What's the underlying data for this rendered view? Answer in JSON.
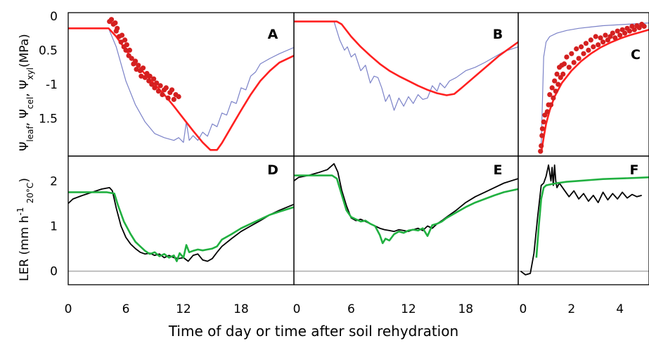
{
  "figure": {
    "xlabel": "Time of day or time after soil rehydration",
    "ylabel_top": "Ψleaf, Ψcel, Ψxyl(MPa)",
    "ylabel_bottom": "LER (mm h-1 20°C)",
    "colors": {
      "xylem": "#7b82c8",
      "leaf": "#ff2020",
      "points": "#d42020",
      "ler_measured": "#000000",
      "ler_model": "#20b040"
    }
  },
  "chart_data": [
    {
      "id": "A",
      "label": "A",
      "type": "line",
      "xlim": [
        0,
        23.5
      ],
      "ylim": [
        -2.05,
        0.05
      ],
      "xticks": [
        0,
        6,
        12,
        18
      ],
      "yticks": [
        0,
        -0.5,
        -1,
        -1.5
      ],
      "ytick_labels": [
        "0",
        "0.5",
        "-1",
        "1.5"
      ],
      "series": [
        {
          "color": "#7b82c8",
          "x": [
            0,
            4.2,
            5,
            6,
            7,
            8,
            9,
            10,
            11,
            11.5,
            12,
            12.3,
            12.6,
            13,
            13.5,
            14,
            14.5,
            15,
            15.5,
            16,
            16.5,
            17,
            17.5,
            18,
            18.5,
            19,
            19.5,
            20,
            21,
            22,
            23.5
          ],
          "y": [
            -0.18,
            -0.18,
            -0.45,
            -0.95,
            -1.3,
            -1.55,
            -1.72,
            -1.78,
            -1.82,
            -1.78,
            -1.85,
            -1.55,
            -1.82,
            -1.75,
            -1.82,
            -1.7,
            -1.76,
            -1.58,
            -1.62,
            -1.42,
            -1.45,
            -1.25,
            -1.28,
            -1.05,
            -1.08,
            -0.88,
            -0.82,
            -0.7,
            -0.62,
            -0.55,
            -0.46
          ]
        },
        {
          "color": "#ff2020",
          "x": [
            0,
            4.2,
            5,
            6,
            7,
            8,
            9,
            10,
            11,
            12,
            13,
            14,
            14.8,
            15.5,
            16,
            17,
            18,
            19,
            20,
            21,
            22,
            23.5
          ],
          "y": [
            -0.18,
            -0.18,
            -0.3,
            -0.5,
            -0.68,
            -0.85,
            -1.0,
            -1.15,
            -1.32,
            -1.5,
            -1.68,
            -1.85,
            -1.96,
            -1.96,
            -1.86,
            -1.62,
            -1.38,
            -1.15,
            -0.95,
            -0.8,
            -0.68,
            -0.58
          ]
        }
      ],
      "points": {
        "color": "#d42020",
        "x": [
          4.3,
          4.5,
          4.7,
          4.9,
          5.0,
          5.1,
          5.3,
          5.5,
          5.6,
          5.8,
          5.9,
          6.0,
          6.1,
          6.3,
          6.4,
          6.6,
          6.8,
          7.0,
          7.1,
          7.3,
          7.5,
          7.6,
          7.8,
          8.0,
          8.2,
          8.4,
          8.5,
          8.7,
          8.9,
          9.0,
          9.2,
          9.4,
          9.6,
          9.8,
          10.0,
          10.2,
          10.4,
          10.6,
          10.8,
          11.0,
          11.2,
          11.5
        ],
        "y": [
          -0.08,
          -0.05,
          -0.12,
          -0.1,
          -0.22,
          -0.18,
          -0.3,
          -0.38,
          -0.28,
          -0.45,
          -0.35,
          -0.5,
          -0.42,
          -0.58,
          -0.5,
          -0.62,
          -0.7,
          -0.66,
          -0.78,
          -0.72,
          -0.8,
          -0.88,
          -0.76,
          -0.9,
          -0.84,
          -0.95,
          -0.88,
          -1.0,
          -0.92,
          -1.05,
          -0.98,
          -1.1,
          -1.02,
          -1.15,
          -1.08,
          -1.05,
          -1.2,
          -1.12,
          -1.08,
          -1.22,
          -1.15,
          -1.18
        ]
      }
    },
    {
      "id": "B",
      "label": "B",
      "type": "line",
      "xlim": [
        0,
        23.5
      ],
      "ylim": [
        -2.05,
        0.05
      ],
      "xticks": [
        0,
        6,
        12,
        18
      ],
      "yticks": [],
      "series": [
        {
          "color": "#7b82c8",
          "x": [
            0,
            4.2,
            4.8,
            5.3,
            5.6,
            6,
            6.4,
            7,
            7.5,
            8,
            8.4,
            8.8,
            9.2,
            9.6,
            10,
            10.5,
            11,
            11.5,
            12,
            12.5,
            13,
            13.5,
            14,
            14.5,
            15,
            15.3,
            15.8,
            16.3,
            17,
            18,
            19,
            20,
            21,
            22,
            23.5
          ],
          "y": [
            -0.08,
            -0.08,
            -0.35,
            -0.5,
            -0.45,
            -0.6,
            -0.55,
            -0.8,
            -0.72,
            -0.98,
            -0.88,
            -0.9,
            -1.05,
            -1.25,
            -1.15,
            -1.38,
            -1.2,
            -1.32,
            -1.18,
            -1.28,
            -1.15,
            -1.22,
            -1.2,
            -1.02,
            -1.1,
            -0.98,
            -1.05,
            -0.95,
            -0.9,
            -0.8,
            -0.75,
            -0.68,
            -0.6,
            -0.52,
            -0.45
          ]
        },
        {
          "color": "#ff2020",
          "x": [
            0,
            4.5,
            5,
            6,
            7,
            8,
            9,
            10,
            11,
            12,
            13,
            14,
            15,
            16,
            16.8,
            17.5,
            18.5,
            19.5,
            20.5,
            21.5,
            22.5,
            23.5
          ],
          "y": [
            -0.08,
            -0.08,
            -0.12,
            -0.3,
            -0.45,
            -0.58,
            -0.7,
            -0.8,
            -0.88,
            -0.95,
            -1.02,
            -1.08,
            -1.13,
            -1.16,
            -1.14,
            -1.06,
            -0.94,
            -0.82,
            -0.7,
            -0.58,
            -0.48,
            -0.38
          ]
        }
      ]
    },
    {
      "id": "C",
      "label": "C",
      "type": "line",
      "xlim": [
        -0.2,
        5.2
      ],
      "ylim": [
        -2.05,
        0.05
      ],
      "xticks": [
        0,
        2,
        4
      ],
      "yticks": [],
      "series": [
        {
          "color": "#7b82c8",
          "x": [
            0.75,
            0.85,
            0.95,
            1.1,
            1.4,
            1.8,
            2.3,
            2.8,
            3.3,
            3.8,
            4.3,
            4.8,
            5.2
          ],
          "y": [
            -1.9,
            -0.6,
            -0.38,
            -0.3,
            -0.25,
            -0.21,
            -0.18,
            -0.16,
            -0.14,
            -0.13,
            -0.12,
            -0.11,
            -0.1
          ]
        },
        {
          "color": "#ff2020",
          "x": [
            0.75,
            0.85,
            0.95,
            1.1,
            1.3,
            1.6,
            2.0,
            2.4,
            2.8,
            3.2,
            3.6,
            4.0,
            4.4,
            4.8,
            5.2
          ],
          "y": [
            -2.0,
            -1.78,
            -1.58,
            -1.38,
            -1.18,
            -0.98,
            -0.8,
            -0.66,
            -0.55,
            -0.46,
            -0.39,
            -0.33,
            -0.28,
            -0.24,
            -0.2
          ]
        }
      ],
      "points": {
        "color": "#d42020",
        "x": [
          0.72,
          0.75,
          0.78,
          0.8,
          0.85,
          0.9,
          1.0,
          1.05,
          1.1,
          1.15,
          1.2,
          1.25,
          1.3,
          1.35,
          1.4,
          1.45,
          1.5,
          1.55,
          1.6,
          1.65,
          1.7,
          1.8,
          1.9,
          2.0,
          2.1,
          2.2,
          2.3,
          2.4,
          2.5,
          2.6,
          2.7,
          2.8,
          2.9,
          3.0,
          3.1,
          3.2,
          3.3,
          3.4,
          3.5,
          3.6,
          3.7,
          3.8,
          3.9,
          4.0,
          4.1,
          4.2,
          4.3,
          4.4,
          4.5,
          4.6,
          4.7,
          4.8,
          4.9,
          5.0
        ],
        "y": [
          -1.98,
          -1.9,
          -1.75,
          -1.65,
          -1.55,
          -1.45,
          -1.4,
          -1.3,
          -1.15,
          -1.3,
          -1.05,
          -1.2,
          -0.95,
          -1.1,
          -0.85,
          -1.0,
          -0.75,
          -0.9,
          -0.72,
          -0.85,
          -0.7,
          -0.6,
          -0.75,
          -0.55,
          -0.68,
          -0.48,
          -0.62,
          -0.45,
          -0.55,
          -0.4,
          -0.5,
          -0.35,
          -0.45,
          -0.3,
          -0.42,
          -0.32,
          -0.38,
          -0.28,
          -0.35,
          -0.3,
          -0.25,
          -0.32,
          -0.22,
          -0.28,
          -0.2,
          -0.25,
          -0.18,
          -0.22,
          -0.15,
          -0.2,
          -0.14,
          -0.17,
          -0.12,
          -0.15
        ]
      }
    },
    {
      "id": "D",
      "label": "D",
      "type": "line",
      "xlim": [
        0,
        23.5
      ],
      "ylim": [
        -0.3,
        2.55
      ],
      "xticks": [
        0,
        6,
        12,
        18
      ],
      "yticks": [
        0,
        1,
        2
      ],
      "xtick_labels": [
        "0",
        "6",
        "12",
        "18"
      ],
      "series": [
        {
          "color": "#000000",
          "x": [
            0,
            0.5,
            1.5,
            2.5,
            3.5,
            4.3,
            4.6,
            5,
            5.5,
            6,
            6.5,
            7,
            7.5,
            8,
            8.5,
            9,
            9.5,
            10,
            10.5,
            11,
            11.5,
            12,
            12.5,
            13,
            13.5,
            14,
            14.5,
            15,
            15.5,
            16,
            17,
            18,
            19,
            20,
            21,
            22,
            23.5
          ],
          "y": [
            1.5,
            1.6,
            1.68,
            1.75,
            1.82,
            1.85,
            1.78,
            1.4,
            1.0,
            0.75,
            0.6,
            0.5,
            0.42,
            0.38,
            0.4,
            0.35,
            0.38,
            0.3,
            0.35,
            0.3,
            0.28,
            0.3,
            0.22,
            0.35,
            0.38,
            0.25,
            0.22,
            0.28,
            0.42,
            0.55,
            0.72,
            0.88,
            1.0,
            1.12,
            1.25,
            1.35,
            1.48
          ]
        },
        {
          "color": "#20b040",
          "x": [
            0,
            1,
            2,
            3,
            4,
            4.8,
            5.2,
            5.8,
            6.5,
            7,
            7.5,
            8,
            8.5,
            9,
            9.5,
            10,
            10.5,
            11,
            11.3,
            11.6,
            12,
            12.3,
            12.6,
            13,
            13.5,
            14,
            14.5,
            15,
            15.5,
            16,
            17,
            18,
            19,
            20,
            21,
            22,
            23.5
          ],
          "y": [
            1.75,
            1.75,
            1.75,
            1.75,
            1.75,
            1.72,
            1.45,
            1.1,
            0.82,
            0.65,
            0.55,
            0.45,
            0.38,
            0.42,
            0.33,
            0.38,
            0.3,
            0.35,
            0.22,
            0.4,
            0.3,
            0.58,
            0.42,
            0.45,
            0.48,
            0.46,
            0.48,
            0.5,
            0.55,
            0.7,
            0.82,
            0.95,
            1.05,
            1.15,
            1.25,
            1.32,
            1.42
          ]
        }
      ]
    },
    {
      "id": "E",
      "label": "E",
      "type": "line",
      "xlim": [
        0,
        23.5
      ],
      "ylim": [
        -0.3,
        2.55
      ],
      "xticks": [
        0,
        6,
        12,
        18
      ],
      "yticks": [],
      "xtick_labels": [
        "0",
        "6",
        "12",
        "18"
      ],
      "series": [
        {
          "color": "#000000",
          "x": [
            0,
            0.5,
            1.5,
            2.5,
            3.5,
            4.2,
            4.6,
            5,
            5.5,
            6,
            6.5,
            7,
            7.5,
            8,
            8.5,
            9,
            9.5,
            10,
            10.5,
            11,
            11.5,
            12,
            12.5,
            13,
            13.5,
            14,
            14.5,
            15,
            15.5,
            16,
            17,
            18,
            19,
            20,
            21,
            22,
            23.5
          ],
          "y": [
            2.0,
            2.08,
            2.12,
            2.18,
            2.25,
            2.38,
            2.2,
            1.8,
            1.45,
            1.18,
            1.12,
            1.15,
            1.1,
            1.05,
            1.0,
            0.95,
            0.92,
            0.9,
            0.88,
            0.92,
            0.9,
            0.88,
            0.92,
            0.95,
            0.9,
            1.0,
            0.95,
            1.05,
            1.12,
            1.2,
            1.35,
            1.52,
            1.65,
            1.75,
            1.85,
            1.95,
            2.05
          ]
        },
        {
          "color": "#20b040",
          "x": [
            0,
            1,
            2,
            3,
            4,
            4.5,
            5,
            5.5,
            6,
            6.5,
            7,
            7.5,
            8,
            8.5,
            9,
            9.3,
            9.6,
            10,
            10.5,
            11,
            11.5,
            12,
            12.5,
            13,
            13.5,
            14,
            14.5,
            15,
            15.5,
            16,
            17,
            18,
            19,
            20,
            21,
            22,
            23.5
          ],
          "y": [
            2.12,
            2.12,
            2.12,
            2.12,
            2.12,
            2.05,
            1.7,
            1.35,
            1.2,
            1.15,
            1.1,
            1.12,
            1.05,
            1.0,
            0.8,
            0.62,
            0.72,
            0.68,
            0.82,
            0.88,
            0.85,
            0.9,
            0.92,
            0.9,
            0.95,
            0.78,
            1.02,
            1.05,
            1.1,
            1.18,
            1.3,
            1.42,
            1.52,
            1.6,
            1.68,
            1.75,
            1.82
          ]
        }
      ]
    },
    {
      "id": "F",
      "label": "F",
      "type": "line",
      "xlim": [
        -0.2,
        5.2
      ],
      "ylim": [
        -0.3,
        2.55
      ],
      "xticks": [
        0,
        2,
        4
      ],
      "yticks": [],
      "xtick_labels": [
        "0",
        "2",
        "4"
      ],
      "series": [
        {
          "color": "#000000",
          "x": [
            -0.1,
            0.1,
            0.3,
            0.45,
            0.6,
            0.75,
            0.85,
            0.95,
            1.05,
            1.15,
            1.2,
            1.25,
            1.3,
            1.35,
            1.4,
            1.5,
            1.7,
            1.9,
            2.1,
            2.3,
            2.5,
            2.7,
            2.9,
            3.1,
            3.3,
            3.5,
            3.7,
            3.9,
            4.1,
            4.3,
            4.5,
            4.7,
            4.9
          ],
          "y": [
            0.0,
            -0.08,
            -0.05,
            0.4,
            1.2,
            1.9,
            1.95,
            2.1,
            2.35,
            2.0,
            2.3,
            1.9,
            2.35,
            2.0,
            1.85,
            1.95,
            1.8,
            1.65,
            1.78,
            1.6,
            1.72,
            1.55,
            1.68,
            1.52,
            1.75,
            1.58,
            1.72,
            1.6,
            1.75,
            1.62,
            1.7,
            1.65,
            1.68
          ]
        },
        {
          "color": "#20b040",
          "x": [
            0.55,
            0.65,
            0.75,
            0.85,
            0.95,
            1.1,
            1.4,
            1.8,
            2.3,
            2.8,
            3.3,
            3.8,
            4.3,
            4.8,
            5.2
          ],
          "y": [
            0.3,
            1.0,
            1.6,
            1.85,
            1.9,
            1.92,
            1.95,
            1.98,
            2.0,
            2.02,
            2.04,
            2.05,
            2.06,
            2.07,
            2.08
          ]
        }
      ]
    }
  ]
}
